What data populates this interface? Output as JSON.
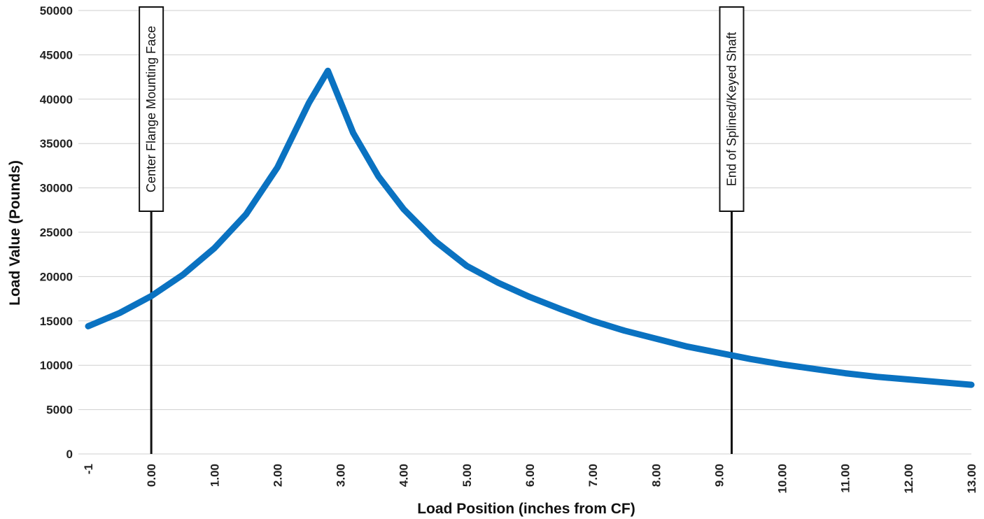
{
  "chart_data": {
    "type": "line",
    "xlabel": "Load Position (inches from CF)",
    "ylabel": "Load Value (Pounds)",
    "xlim": [
      -1,
      13
    ],
    "ylim": [
      0,
      50000
    ],
    "grid": "horizontal",
    "x_ticks": [
      {
        "value": -1,
        "label": "-1"
      },
      {
        "value": 0,
        "label": "0.00"
      },
      {
        "value": 1,
        "label": "1.00"
      },
      {
        "value": 2,
        "label": "2.00"
      },
      {
        "value": 3,
        "label": "3.00"
      },
      {
        "value": 4,
        "label": "4.00"
      },
      {
        "value": 5,
        "label": "5.00"
      },
      {
        "value": 6,
        "label": "6.00"
      },
      {
        "value": 7,
        "label": "7.00"
      },
      {
        "value": 8,
        "label": "8.00"
      },
      {
        "value": 9,
        "label": "9.00"
      },
      {
        "value": 10,
        "label": "10.00"
      },
      {
        "value": 11,
        "label": "11.00"
      },
      {
        "value": 12,
        "label": "12.00"
      },
      {
        "value": 13,
        "label": "13.00"
      }
    ],
    "y_ticks": [
      {
        "value": 0,
        "label": "0"
      },
      {
        "value": 5000,
        "label": "5000"
      },
      {
        "value": 10000,
        "label": "10000"
      },
      {
        "value": 15000,
        "label": "15000"
      },
      {
        "value": 20000,
        "label": "20000"
      },
      {
        "value": 25000,
        "label": "25000"
      },
      {
        "value": 30000,
        "label": "30000"
      },
      {
        "value": 35000,
        "label": "35000"
      },
      {
        "value": 40000,
        "label": "40000"
      },
      {
        "value": 45000,
        "label": "45000"
      },
      {
        "value": 50000,
        "label": "50000"
      }
    ],
    "series": [
      {
        "color": "#0a72c1",
        "x": [
          -1,
          -0.5,
          0,
          0.5,
          1,
          1.5,
          2,
          2.5,
          2.8,
          3.2,
          3.6,
          4,
          4.5,
          5,
          5.5,
          6,
          6.5,
          7,
          7.5,
          8,
          8.5,
          9,
          9.5,
          10,
          10.5,
          11,
          11.5,
          12,
          12.5,
          13
        ],
        "y": [
          14400,
          15900,
          17800,
          20200,
          23200,
          27000,
          32300,
          39600,
          43200,
          36200,
          31300,
          27600,
          24000,
          21200,
          19300,
          17700,
          16300,
          15000,
          13900,
          13000,
          12100,
          11400,
          10700,
          10100,
          9600,
          9100,
          8700,
          8400,
          8100,
          7800
        ]
      }
    ],
    "annotations": [
      {
        "x": 0,
        "label": "Center Flange Mounting Face"
      },
      {
        "x": 9.2,
        "label": "End of Splined/Keyed Shaft"
      }
    ]
  }
}
